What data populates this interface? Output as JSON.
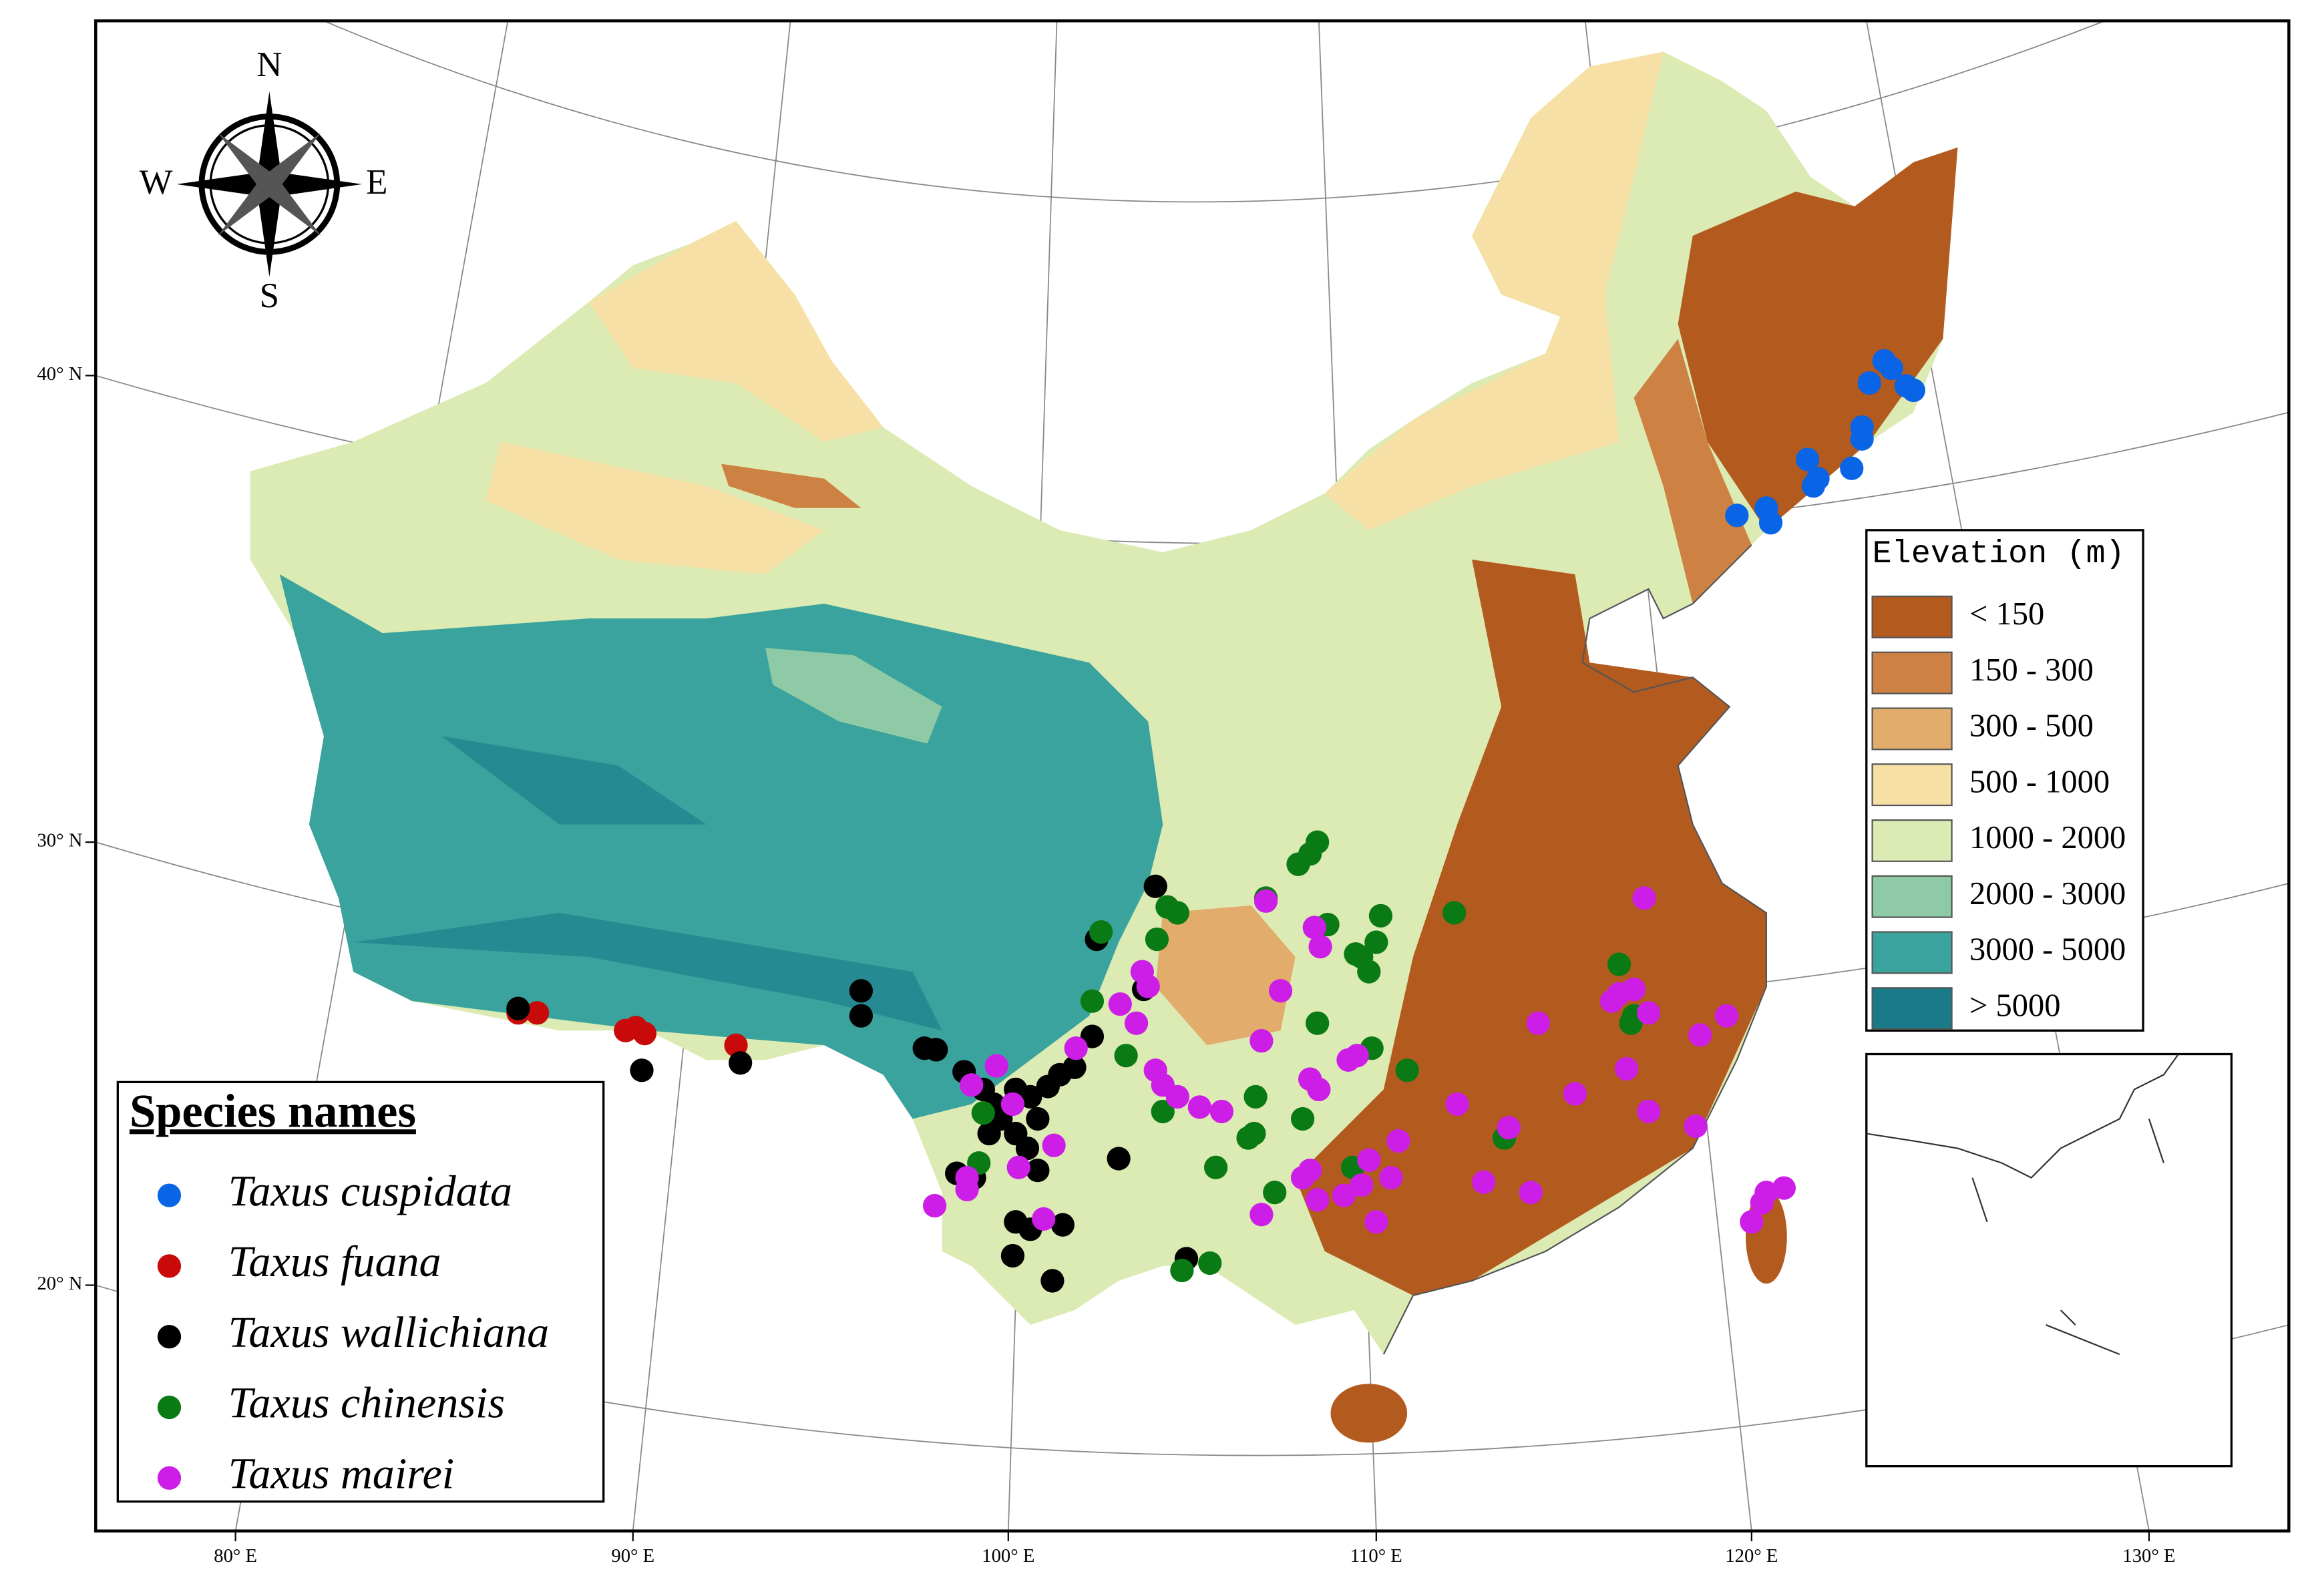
{
  "compass": {
    "n": "N",
    "s": "S",
    "w": "W",
    "e": "E"
  },
  "graticule": {
    "lat_labels": [
      "40° N",
      "30° N",
      "20° N"
    ],
    "lon_labels": [
      "80° E",
      "90° E",
      "100° E",
      "110° E",
      "120° E",
      "130° E"
    ]
  },
  "elevation_legend": {
    "title": "Elevation (m)",
    "classes": [
      {
        "label": "< 150",
        "color": "#b35a1f"
      },
      {
        "label": "150 - 300",
        "color": "#cd8244"
      },
      {
        "label": "300 - 500",
        "color": "#e2ac6c"
      },
      {
        "label": "500 - 1000",
        "color": "#f7e0a6"
      },
      {
        "label": "1000 - 2000",
        "color": "#dcebb3"
      },
      {
        "label": "2000 - 3000",
        "color": "#8ecaa5"
      },
      {
        "label": "3000 - 5000",
        "color": "#3ba39d"
      },
      {
        "label": "> 5000",
        "color": "#1b7a8a"
      }
    ]
  },
  "species_legend": {
    "title": "Species names",
    "species": [
      {
        "name": "Taxus cuspidata",
        "color": "#0a64e6"
      },
      {
        "name": "Taxus fuana",
        "color": "#c80a0a"
      },
      {
        "name": "Taxus wallichiana",
        "color": "#000000"
      },
      {
        "name": "Taxus chinensis",
        "color": "#0a7a14"
      },
      {
        "name": "Taxus mairei",
        "color": "#cc1ee6"
      }
    ]
  }
}
